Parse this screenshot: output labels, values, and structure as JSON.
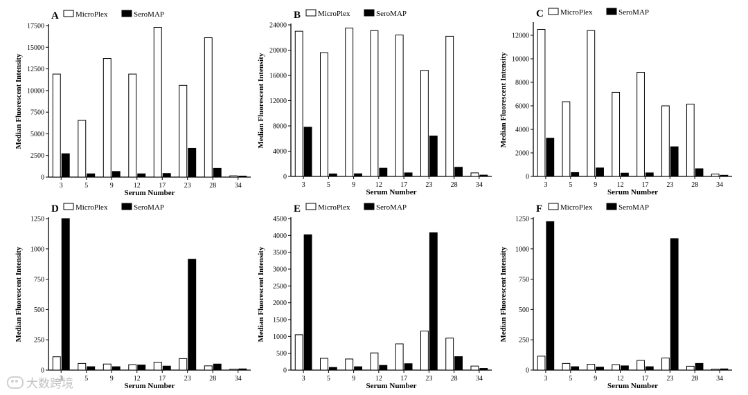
{
  "legend": {
    "series_a": "MicroPlex",
    "series_b": "SeroMAP"
  },
  "watermark": {
    "text": "大数跨境",
    "icon": "chat-bubble-icon"
  },
  "chart_data": [
    {
      "type": "bar",
      "panel": "A",
      "categories": [
        "3",
        "5",
        "9",
        "12",
        "17",
        "23",
        "28",
        "34"
      ],
      "ylim": [
        0,
        17500
      ],
      "yticks": [
        0,
        2500,
        5000,
        7500,
        10000,
        12500,
        15000,
        17500
      ],
      "xlabel": "Serum Number",
      "ylabel": "Median Fluorescent Intensity",
      "series": [
        {
          "name": "MicroPlex",
          "values": [
            11900,
            6550,
            13700,
            11900,
            17300,
            10600,
            16100,
            150
          ]
        },
        {
          "name": "SeroMAP",
          "values": [
            2700,
            380,
            650,
            380,
            420,
            3320,
            1010,
            120
          ]
        }
      ]
    },
    {
      "type": "bar",
      "panel": "B",
      "categories": [
        "3",
        "5",
        "9",
        "12",
        "17",
        "23",
        "28",
        "34"
      ],
      "ylim": [
        0,
        24000
      ],
      "yticks": [
        0,
        4000,
        8000,
        12000,
        16000,
        20000,
        24000
      ],
      "xlabel": "Serum Number",
      "ylabel": "Median Fluorescent Intensity",
      "series": [
        {
          "name": "MicroPlex",
          "values": [
            23000,
            19600,
            23500,
            23100,
            22400,
            16800,
            22200,
            560
          ]
        },
        {
          "name": "SeroMAP",
          "values": [
            7800,
            400,
            420,
            1300,
            560,
            6400,
            1450,
            210
          ]
        }
      ]
    },
    {
      "type": "bar",
      "panel": "C",
      "categories": [
        "3",
        "5",
        "9",
        "12",
        "17",
        "23",
        "28",
        "34"
      ],
      "ylim": [
        0,
        13000
      ],
      "yticks": [
        0,
        2000,
        4000,
        6000,
        8000,
        10000,
        12000
      ],
      "xlabel": "Serum Number",
      "ylabel": "Median Fluorescent Intensity",
      "series": [
        {
          "name": "MicroPlex",
          "values": [
            12500,
            6350,
            12400,
            7150,
            8850,
            6000,
            6150,
            200
          ]
        },
        {
          "name": "SeroMAP",
          "values": [
            3250,
            330,
            720,
            280,
            300,
            2520,
            650,
            100
          ]
        }
      ]
    },
    {
      "type": "bar",
      "panel": "D",
      "categories": [
        "3",
        "5",
        "9",
        "12",
        "17",
        "23",
        "28",
        "34"
      ],
      "ylim": [
        0,
        1250
      ],
      "yticks": [
        0,
        250,
        500,
        750,
        1000,
        1250
      ],
      "xlabel": "Serum Number",
      "ylabel": "Median Fluorescent Intensity",
      "series": [
        {
          "name": "MicroPlex",
          "values": [
            110,
            55,
            50,
            45,
            65,
            95,
            35,
            8
          ]
        },
        {
          "name": "SeroMAP",
          "values": [
            1250,
            28,
            28,
            42,
            33,
            915,
            50,
            10
          ]
        }
      ]
    },
    {
      "type": "bar",
      "panel": "E",
      "categories": [
        "3",
        "5",
        "9",
        "12",
        "17",
        "23",
        "28",
        "34"
      ],
      "ylim": [
        0,
        4500
      ],
      "yticks": [
        0,
        500,
        1000,
        1500,
        2000,
        2500,
        3000,
        3500,
        4000,
        4500
      ],
      "xlabel": "Serum Number",
      "ylabel": "Median Fluorescent Intensity",
      "series": [
        {
          "name": "MicroPlex",
          "values": [
            1050,
            350,
            330,
            510,
            780,
            1160,
            950,
            120
          ]
        },
        {
          "name": "SeroMAP",
          "values": [
            4020,
            80,
            100,
            140,
            190,
            4080,
            400,
            50
          ]
        }
      ]
    },
    {
      "type": "bar",
      "panel": "F",
      "categories": [
        "3",
        "5",
        "9",
        "12",
        "17",
        "23",
        "28",
        "34"
      ],
      "ylim": [
        0,
        1250
      ],
      "yticks": [
        0,
        250,
        500,
        750,
        1000,
        1250
      ],
      "xlabel": "Serum Number",
      "ylabel": "Median Fluorescent Intensity",
      "series": [
        {
          "name": "MicroPlex",
          "values": [
            115,
            55,
            48,
            45,
            80,
            100,
            32,
            8
          ]
        },
        {
          "name": "SeroMAP",
          "values": [
            1225,
            28,
            25,
            35,
            28,
            1085,
            55,
            10
          ]
        }
      ]
    }
  ]
}
